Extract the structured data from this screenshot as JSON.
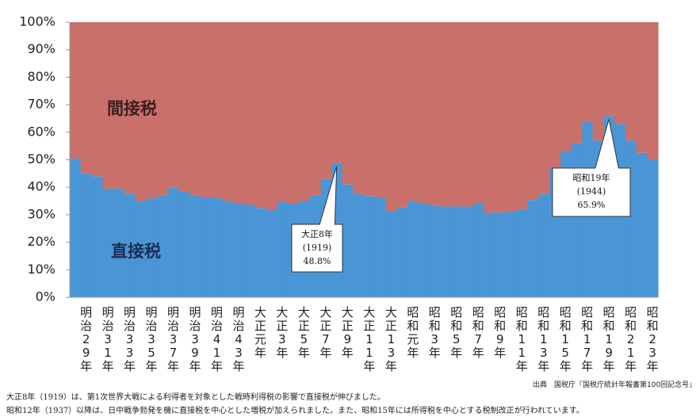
{
  "chart_data": {
    "type": "area",
    "categories": [
      null,
      "明治29年",
      null,
      "明治31年",
      null,
      "明治33年",
      null,
      "明治35年",
      null,
      "明治37年",
      null,
      "明治39年",
      null,
      "明治41年",
      null,
      "明治43年",
      null,
      "大正元年",
      null,
      "大正3年",
      null,
      "大正5年",
      null,
      "大正7年",
      null,
      "大正9年",
      null,
      "大正11年",
      null,
      "大正13年",
      null,
      "昭和元年",
      null,
      "昭和3年",
      null,
      "昭和5年",
      null,
      "昭和7年",
      null,
      "昭和9年",
      null,
      "昭和11年",
      null,
      "昭和13年",
      null,
      "昭和15年",
      null,
      "昭和17年",
      null,
      "昭和19年",
      null,
      "昭和21年",
      null,
      "昭和23年"
    ],
    "series": [
      {
        "name": "直接税",
        "color": "#4a95d6",
        "values": [
          50.4,
          45,
          44,
          39.5,
          39.5,
          37.5,
          35,
          36,
          37,
          40,
          38.5,
          37,
          36.3,
          36.3,
          35,
          34.3,
          33.7,
          32.5,
          31.7,
          34.6,
          34,
          35,
          37,
          43,
          48.8,
          41,
          37.5,
          36.8,
          36.3,
          31.4,
          32.6,
          35,
          34.3,
          33.4,
          33,
          33,
          33,
          34.3,
          30.8,
          30.8,
          31.1,
          32,
          35.4,
          37.5,
          47,
          53,
          56,
          64,
          57,
          65.9,
          63,
          57,
          52.5,
          50
        ]
      },
      {
        "name": "間接税",
        "color": "#c9706a",
        "values": [
          49.6,
          55,
          56,
          60.5,
          60.5,
          62.5,
          65,
          64,
          63,
          60,
          61.5,
          63,
          63.7,
          63.7,
          65,
          65.7,
          66.3,
          67.5,
          68.3,
          65.4,
          66,
          65,
          63,
          57,
          51.2,
          59,
          62.5,
          63.2,
          63.7,
          68.6,
          67.4,
          65,
          65.7,
          66.6,
          67,
          67,
          67,
          65.7,
          69.2,
          69.2,
          68.9,
          68,
          64.6,
          62.5,
          53,
          47,
          44,
          36,
          43,
          34.1,
          37,
          43,
          47.5,
          50
        ]
      }
    ],
    "ylim": [
      0,
      100
    ],
    "yticks": [
      {
        "value": 0,
        "label": "0%"
      },
      {
        "value": 10,
        "label": "10%"
      },
      {
        "value": 20,
        "label": "20%"
      },
      {
        "value": 30,
        "label": "30%"
      },
      {
        "value": 40,
        "label": "40%"
      },
      {
        "value": 50,
        "label": "50%"
      },
      {
        "value": 60,
        "label": "60%"
      },
      {
        "value": 70,
        "label": "70%"
      },
      {
        "value": 80,
        "label": "80%"
      },
      {
        "value": 90,
        "label": "90%"
      },
      {
        "value": 100,
        "label": "100%"
      }
    ],
    "annotations": [
      {
        "index": 24,
        "lines": [
          "大正8年",
          "(1919)",
          "48.8%"
        ]
      },
      {
        "index": 49,
        "lines": [
          "昭和19年",
          "(1944)",
          "65.9%"
        ]
      }
    ],
    "source": "出典　国税庁『国税庁統計年報書第100回記念号』",
    "notes": [
      "大正8年（1919）は、第1次世界大戦による利得者を対象とした戦時利得税の影響で直接税が伸びました。",
      "昭和12年（1937）以降は、日中戦争勃発を機に直接税を中心とした増税が加えられました。また、昭和15年には所得税を中心とする税制改正が行われています。"
    ]
  }
}
